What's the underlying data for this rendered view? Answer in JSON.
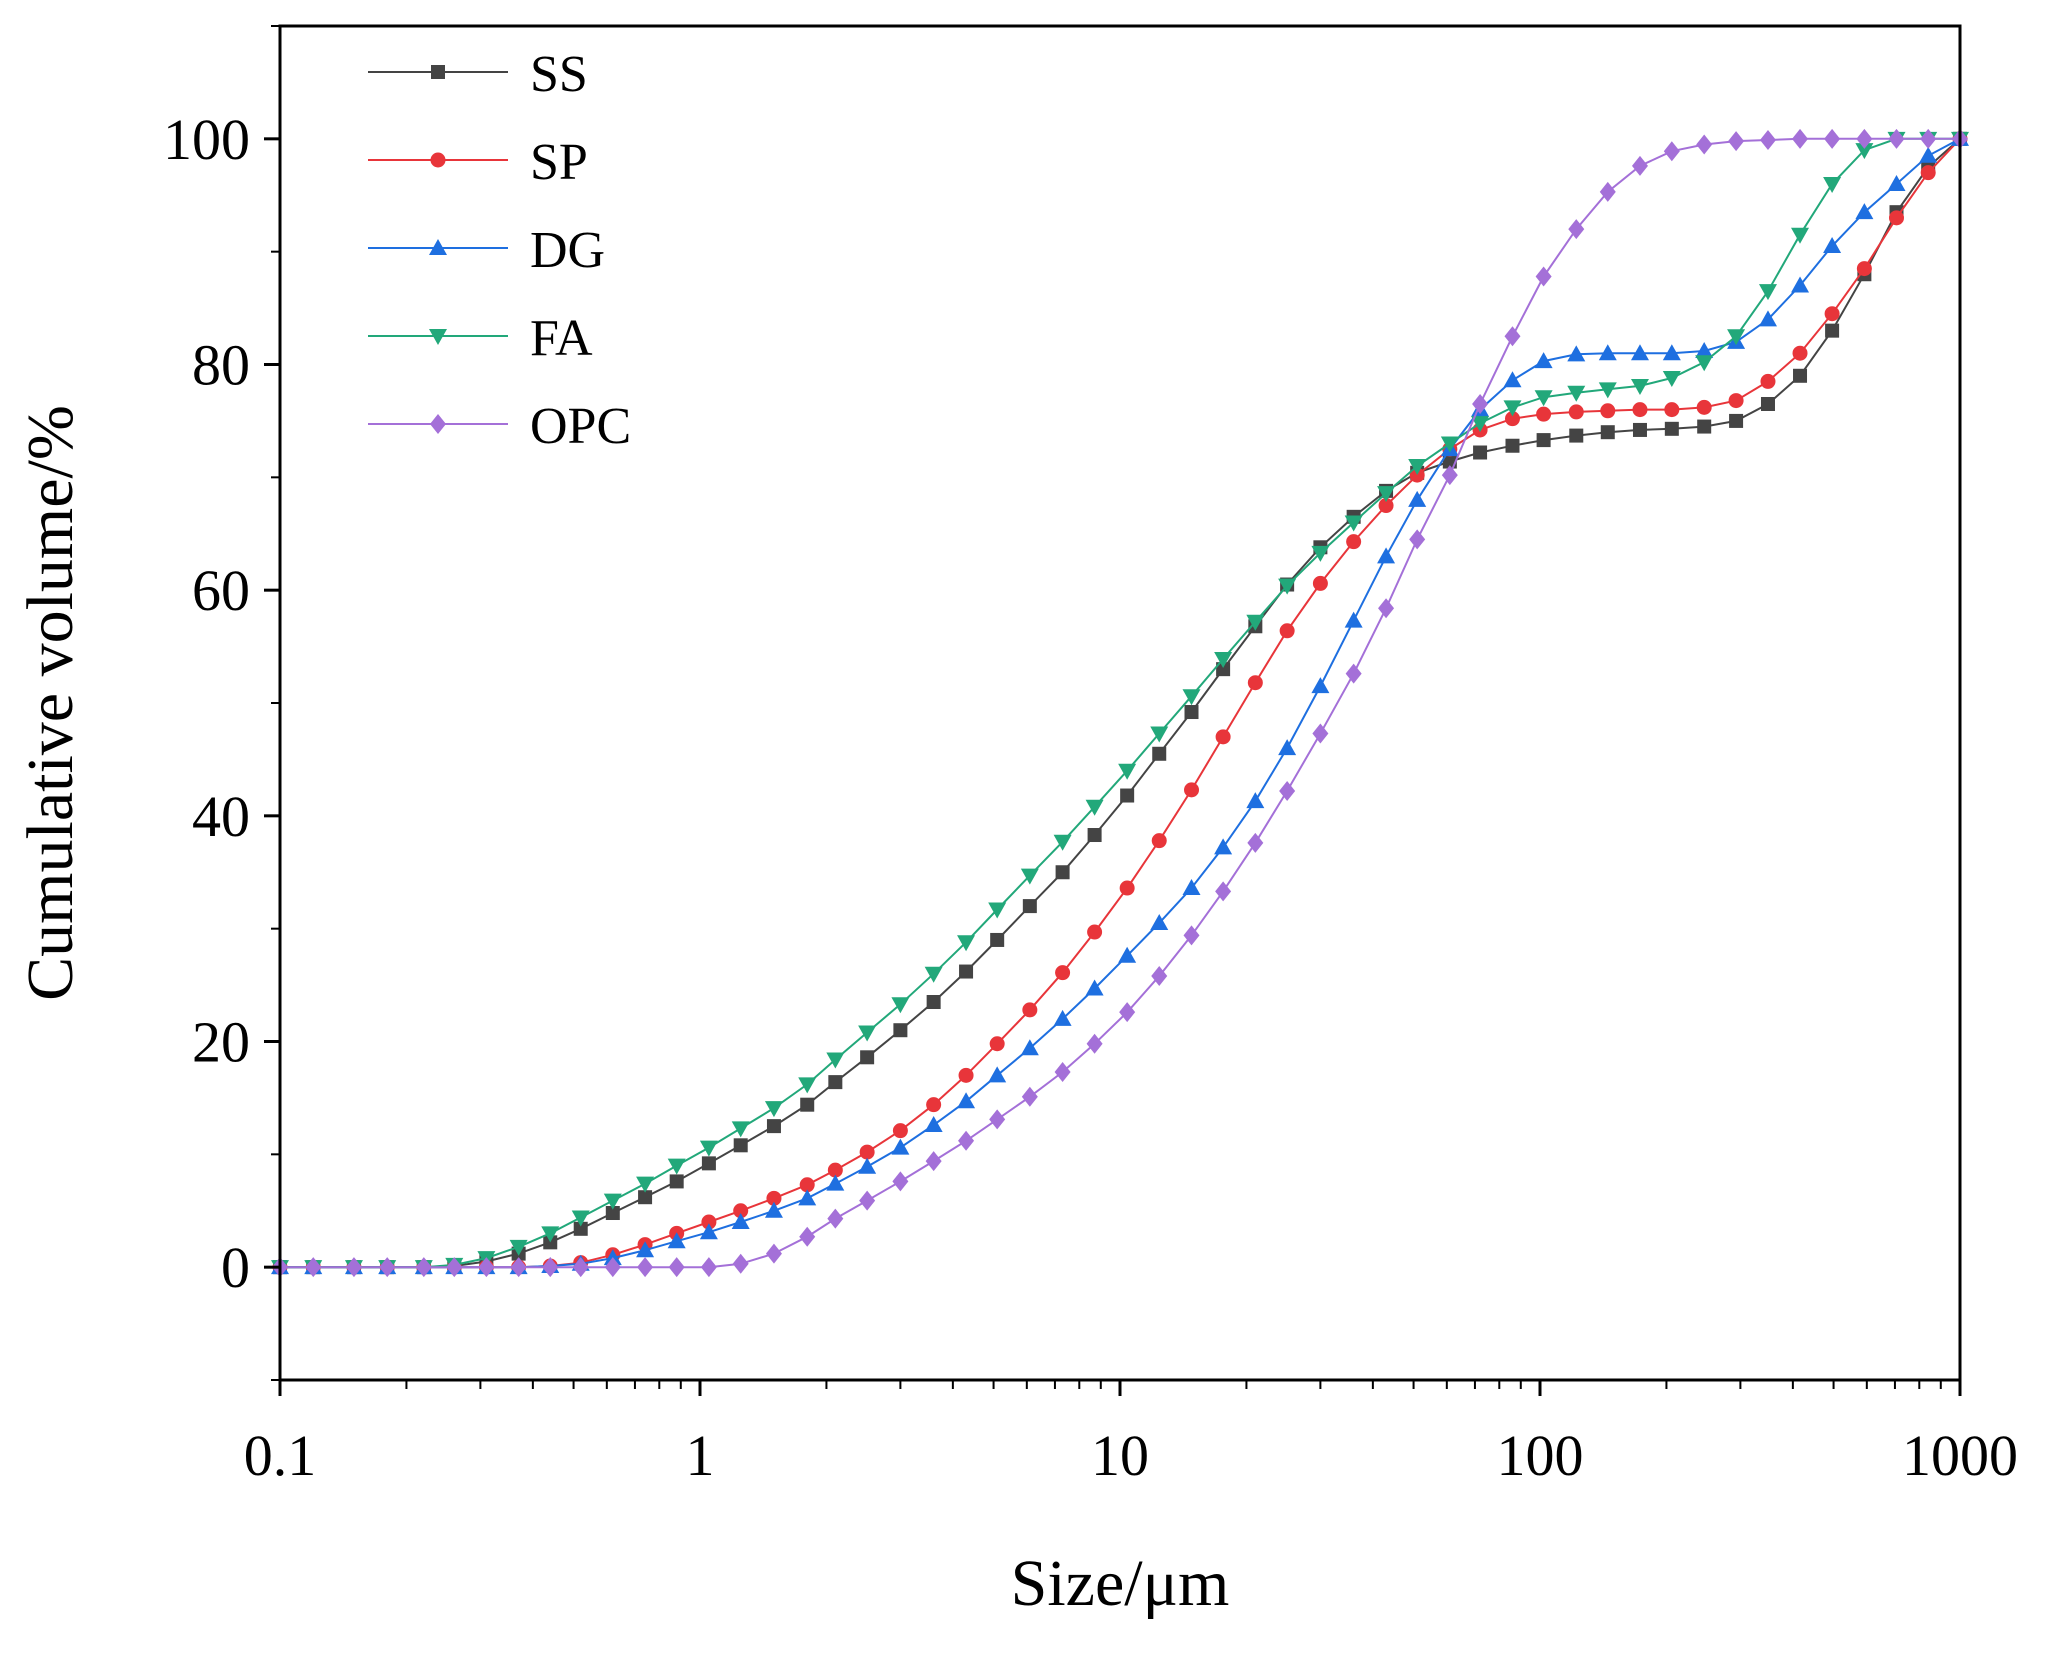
{
  "chart_data": {
    "type": "line",
    "title": "",
    "xlabel": "Size/μm",
    "ylabel": "Cumulative volume/%",
    "xscale": "log",
    "xlim": [
      0.1,
      1000
    ],
    "ylim": [
      -10,
      110
    ],
    "xticks": [
      0.1,
      1,
      10,
      100,
      1000
    ],
    "xtick_labels": [
      "0.1",
      "1",
      "10",
      "100",
      "1000"
    ],
    "yticks": [
      0,
      20,
      40,
      60,
      80,
      100
    ],
    "ytick_labels": [
      "0",
      "20",
      "40",
      "60",
      "80",
      "100"
    ],
    "grid": false,
    "legend_position": "top-left",
    "series": [
      {
        "name": "SS",
        "color": "#444444",
        "marker": "square",
        "x": [
          0.1,
          0.12,
          0.15,
          0.18,
          0.22,
          0.26,
          0.31,
          0.37,
          0.44,
          0.52,
          0.62,
          0.74,
          0.88,
          1.05,
          1.25,
          1.5,
          1.8,
          2.1,
          2.5,
          3.0,
          3.6,
          4.3,
          5.1,
          6.1,
          7.3,
          8.7,
          10.4,
          12.4,
          14.8,
          17.6,
          21,
          25,
          30,
          36,
          43,
          51,
          61,
          72,
          86,
          102,
          122,
          145,
          173,
          206,
          246,
          293,
          349,
          416,
          496,
          592,
          706,
          840,
          1000
        ],
        "y": [
          0,
          0,
          0,
          0,
          0,
          0.1,
          0.5,
          1.2,
          2.2,
          3.4,
          4.8,
          6.2,
          7.6,
          9.2,
          10.8,
          12.5,
          14.4,
          16.4,
          18.6,
          21,
          23.5,
          26.2,
          29,
          32,
          35,
          38.3,
          41.8,
          45.5,
          49.2,
          53,
          56.8,
          60.5,
          63.8,
          66.5,
          68.8,
          70.4,
          71.4,
          72.2,
          72.8,
          73.3,
          73.7,
          74,
          74.2,
          74.3,
          74.5,
          75,
          76.5,
          79,
          83,
          88,
          93.5,
          97.5,
          100
        ]
      },
      {
        "name": "SP",
        "color": "#e8353a",
        "marker": "circle",
        "x": [
          0.1,
          0.12,
          0.15,
          0.18,
          0.22,
          0.26,
          0.31,
          0.37,
          0.44,
          0.52,
          0.62,
          0.74,
          0.88,
          1.05,
          1.25,
          1.5,
          1.8,
          2.1,
          2.5,
          3.0,
          3.6,
          4.3,
          5.1,
          6.1,
          7.3,
          8.7,
          10.4,
          12.4,
          14.8,
          17.6,
          21,
          25,
          30,
          36,
          43,
          51,
          61,
          72,
          86,
          102,
          122,
          145,
          173,
          206,
          246,
          293,
          349,
          416,
          496,
          592,
          706,
          840,
          1000
        ],
        "y": [
          0,
          0,
          0,
          0,
          0,
          0,
          0,
          0,
          0.1,
          0.4,
          1.1,
          2.0,
          3.0,
          4.0,
          5.0,
          6.1,
          7.3,
          8.6,
          10.2,
          12.1,
          14.4,
          17,
          19.8,
          22.8,
          26.1,
          29.7,
          33.6,
          37.8,
          42.3,
          47,
          51.8,
          56.4,
          60.6,
          64.3,
          67.5,
          70.2,
          72.5,
          74.2,
          75.2,
          75.6,
          75.8,
          75.9,
          76,
          76,
          76.2,
          76.8,
          78.5,
          81,
          84.5,
          88.5,
          93,
          97,
          100
        ]
      },
      {
        "name": "DG",
        "color": "#1e6fe0",
        "marker": "triangle-up",
        "x": [
          0.1,
          0.12,
          0.15,
          0.18,
          0.22,
          0.26,
          0.31,
          0.37,
          0.44,
          0.52,
          0.62,
          0.74,
          0.88,
          1.05,
          1.25,
          1.5,
          1.8,
          2.1,
          2.5,
          3.0,
          3.6,
          4.3,
          5.1,
          6.1,
          7.3,
          8.7,
          10.4,
          12.4,
          14.8,
          17.6,
          21,
          25,
          30,
          36,
          43,
          51,
          61,
          72,
          86,
          102,
          122,
          145,
          173,
          206,
          246,
          293,
          349,
          416,
          496,
          592,
          706,
          840,
          1000
        ],
        "y": [
          0,
          0,
          0,
          0,
          0,
          0,
          0,
          0,
          0.1,
          0.3,
          0.8,
          1.5,
          2.3,
          3.1,
          4.0,
          5.0,
          6.1,
          7.4,
          8.9,
          10.6,
          12.6,
          14.7,
          17,
          19.4,
          22,
          24.7,
          27.6,
          30.5,
          33.6,
          37.2,
          41.3,
          46,
          51.5,
          57.3,
          63,
          68,
          72.5,
          76,
          78.6,
          80.3,
          80.9,
          81,
          81,
          81,
          81.2,
          82,
          84,
          87,
          90.5,
          93.5,
          96,
          98.5,
          100
        ]
      },
      {
        "name": "FA",
        "color": "#22a87a",
        "marker": "triangle-down",
        "x": [
          0.1,
          0.12,
          0.15,
          0.18,
          0.22,
          0.26,
          0.31,
          0.37,
          0.44,
          0.52,
          0.62,
          0.74,
          0.88,
          1.05,
          1.25,
          1.5,
          1.8,
          2.1,
          2.5,
          3.0,
          3.6,
          4.3,
          5.1,
          6.1,
          7.3,
          8.7,
          10.4,
          12.4,
          14.8,
          17.6,
          21,
          25,
          30,
          36,
          43,
          51,
          61,
          72,
          86,
          102,
          122,
          145,
          173,
          206,
          246,
          293,
          349,
          416,
          496,
          592,
          706,
          840,
          1000
        ],
        "y": [
          0,
          0,
          0,
          0,
          0,
          0.2,
          0.8,
          1.8,
          3.0,
          4.4,
          5.9,
          7.4,
          9.0,
          10.6,
          12.3,
          14.1,
          16.2,
          18.4,
          20.8,
          23.3,
          26,
          28.8,
          31.7,
          34.7,
          37.7,
          40.8,
          44,
          47.3,
          50.6,
          53.9,
          57.2,
          60.4,
          63.3,
          66,
          68.6,
          71,
          73,
          74.8,
          76.2,
          77.1,
          77.5,
          77.8,
          78.1,
          78.8,
          80.2,
          82.5,
          86.5,
          91.5,
          96,
          99,
          100,
          100,
          100
        ]
      },
      {
        "name": "OPC",
        "color": "#a470d8",
        "marker": "diamond",
        "x": [
          0.1,
          0.12,
          0.15,
          0.18,
          0.22,
          0.26,
          0.31,
          0.37,
          0.44,
          0.52,
          0.62,
          0.74,
          0.88,
          1.05,
          1.25,
          1.5,
          1.8,
          2.1,
          2.5,
          3.0,
          3.6,
          4.3,
          5.1,
          6.1,
          7.3,
          8.7,
          10.4,
          12.4,
          14.8,
          17.6,
          21,
          25,
          30,
          36,
          43,
          51,
          61,
          72,
          86,
          102,
          122,
          145,
          173,
          206,
          246,
          293,
          349,
          416,
          496,
          592,
          706,
          840,
          1000
        ],
        "y": [
          0,
          0,
          0,
          0,
          0,
          0,
          0,
          0,
          0,
          0,
          0,
          0,
          0,
          0,
          0.3,
          1.2,
          2.7,
          4.3,
          5.9,
          7.6,
          9.4,
          11.2,
          13.1,
          15.1,
          17.3,
          19.8,
          22.6,
          25.8,
          29.4,
          33.3,
          37.6,
          42.2,
          47.3,
          52.6,
          58.4,
          64.5,
          70.2,
          76.5,
          82.5,
          87.8,
          92,
          95.3,
          97.6,
          98.9,
          99.5,
          99.8,
          99.9,
          100,
          100,
          100,
          100,
          100,
          100
        ]
      }
    ]
  }
}
